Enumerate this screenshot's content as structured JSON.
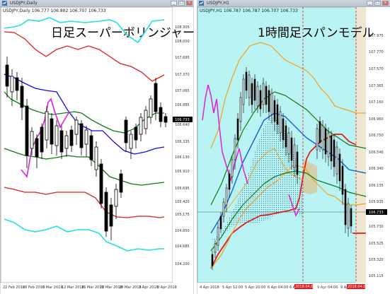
{
  "left_window": {
    "title": "USDJPY,Daily",
    "header": "USDJPY,Daily  106.777 106.802 106.707 106.733",
    "overlay_title": "日足スーパーボリンジャー",
    "current_price": "106.733",
    "y_labels": [
      "108.305",
      "108.000",
      "107.695",
      "107.370",
      "107.065",
      "106.885",
      "106.640",
      "106.335",
      "106.130",
      "105.910",
      "105.695",
      "105.420",
      "105.175",
      "104.850",
      "104.685",
      "104.200"
    ],
    "x_labels": [
      "22 Feb 2018",
      "28 Feb 2018",
      "6 Mar 2018",
      "12 Mar 2018",
      "16 Mar 2018",
      "22 Mar 2018",
      "28 Mar 2018",
      "3 Apr 2018",
      "9 Apr 2018"
    ],
    "colors": {
      "red": "#e11d1d",
      "green": "#0f7a12",
      "blue": "#1010e0",
      "cyan": "#22e0e0",
      "magenta": "#e020d8",
      "candle": "#000000",
      "bg": "#ffffff"
    }
  },
  "right_window": {
    "title": "USDJPY,H1",
    "header": "USDJPY,H1  106.787 106.787 106.707 106.733",
    "overlay_title": "1時間足スパンモデル",
    "current_price": "106.733",
    "y_labels": [
      "107.975",
      "107.770",
      "107.570",
      "107.365",
      "107.160",
      "106.960",
      "106.750",
      "106.546",
      "106.340",
      "106.135",
      "105.935",
      "105.730",
      "105.525",
      "105.320",
      "105.115"
    ],
    "x_labels": [
      "4 Apr 2018",
      "5 Apr 12:00",
      "5 Apr 20:00",
      "6 Apr 04:00",
      "6 Apr 12:00",
      "9 Apr 04:00",
      "9 Apr 12:00"
    ],
    "x_markers": [
      "2018.04.09 07:00",
      "2018.04.09 23:00"
    ],
    "colors": {
      "bg": "#b9f3f3",
      "red": "#e11d1d",
      "green": "#0f7a12",
      "blue": "#1060e0",
      "orange": "#f2a020",
      "magenta": "#e020d8",
      "tan": "#d8c89a"
    }
  }
}
